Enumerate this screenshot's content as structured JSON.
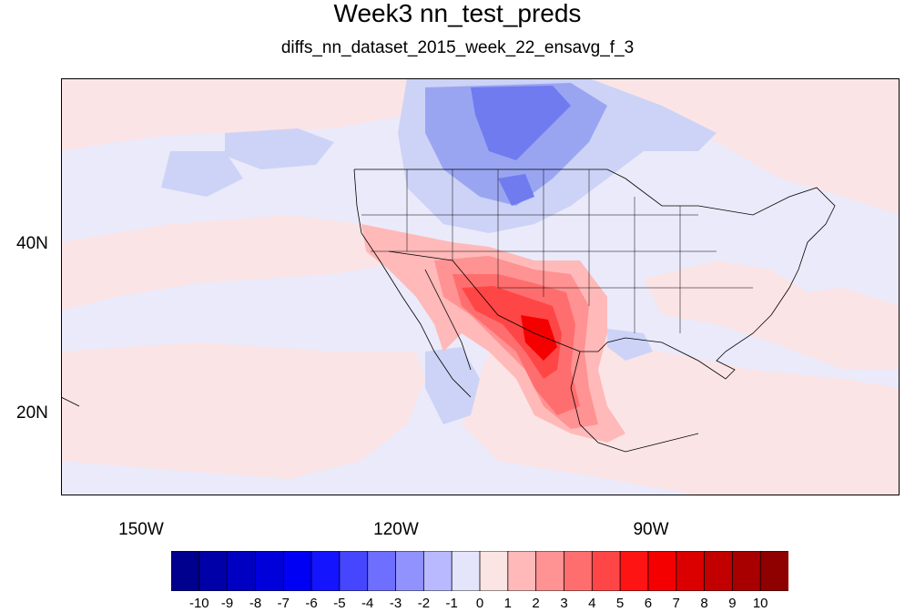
{
  "title": "Week3 nn_test_preds",
  "subtitle": "diffs_nn_dataset_2015_week_22_ensavg_f_3",
  "lat_labels": [
    "40N",
    "20N"
  ],
  "lon_labels": [
    "150W",
    "120W",
    "90W"
  ],
  "colorbar": {
    "labels": [
      "-10",
      "-9",
      "-8",
      "-7",
      "-6",
      "-5",
      "-4",
      "-3",
      "-2",
      "-1",
      "0",
      "1",
      "2",
      "3",
      "4",
      "5",
      "6",
      "7",
      "8",
      "9",
      "10"
    ],
    "colors": [
      "#00008f",
      "#0000a8",
      "#0000c2",
      "#0000db",
      "#0000f5",
      "#1414ff",
      "#4646ff",
      "#6e6eff",
      "#9292ff",
      "#b9b9ff",
      "#e4e4fb",
      "#fbe4e4",
      "#ffb9b9",
      "#ff9292",
      "#ff6e6e",
      "#ff4646",
      "#ff1414",
      "#f50000",
      "#db0000",
      "#c20000",
      "#a80000",
      "#8f0000"
    ]
  },
  "map_colors": {
    "background": "#eaeafa",
    "light_red": "#fbe4e6",
    "pale_blue": "#cdd3f6"
  }
}
